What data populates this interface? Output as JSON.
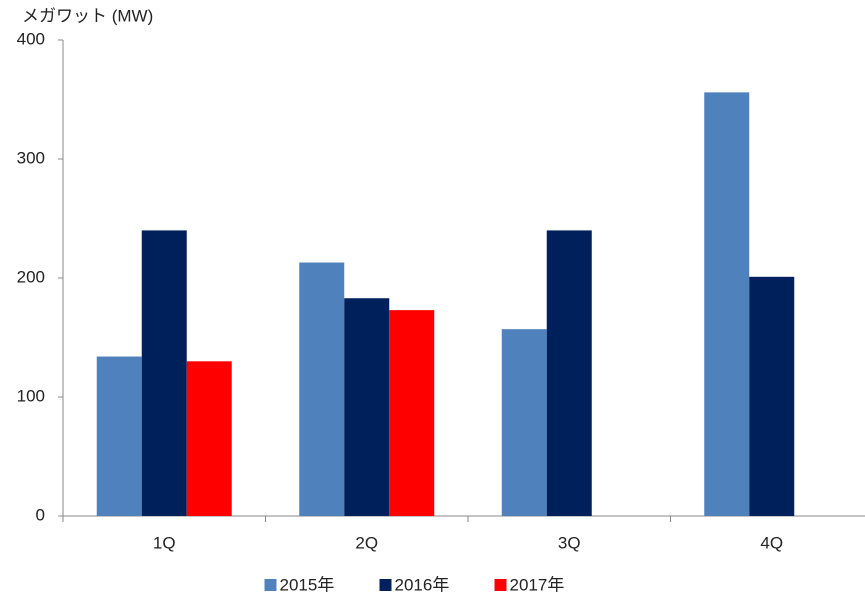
{
  "chart_data": {
    "type": "bar",
    "y_label": "メガワット (MW)",
    "categories": [
      "1Q",
      "2Q",
      "3Q",
      "4Q"
    ],
    "series": [
      {
        "name": "2015年",
        "color": "#4f81bd",
        "values": [
          134,
          213,
          157,
          356
        ]
      },
      {
        "name": "2016年",
        "color": "#00205b",
        "values": [
          240,
          183,
          240,
          201
        ]
      },
      {
        "name": "2017年",
        "color": "#ff0000",
        "values": [
          130,
          173,
          null,
          null
        ]
      }
    ],
    "ylim": [
      0,
      400
    ],
    "yticks": [
      0,
      100,
      200,
      300,
      400
    ],
    "grid": false,
    "legend": "bottom"
  }
}
